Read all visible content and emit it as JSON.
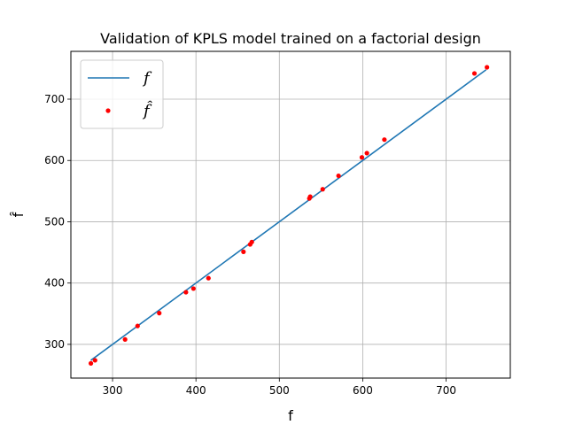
{
  "chart_data": {
    "type": "scatter",
    "title": "Validation of KPLS model trained on a factorial design",
    "xlabel": "f",
    "ylabel": "f̂",
    "xlim": [
      250,
      777
    ],
    "ylim": [
      245,
      778
    ],
    "xticks": [
      300,
      400,
      500,
      600,
      700
    ],
    "yticks": [
      300,
      400,
      500,
      600,
      700
    ],
    "grid": true,
    "legend_placement": "top-left",
    "series": [
      {
        "name": "f",
        "kind": "line",
        "color": "#1f77b4",
        "x": [
          274,
          748
        ],
        "y": [
          274,
          748
        ]
      },
      {
        "name": "f̂",
        "kind": "scatter",
        "color": "#ff0000",
        "x": [
          274,
          279,
          315,
          330,
          356,
          388,
          397,
          415,
          457,
          465,
          467,
          536,
          537,
          552,
          571,
          599,
          605,
          626,
          734,
          749
        ],
        "y": [
          269,
          274,
          308,
          330,
          351,
          385,
          391,
          408,
          451,
          463,
          467,
          538,
          541,
          553,
          575,
          605,
          612,
          634,
          742,
          752
        ]
      }
    ]
  }
}
